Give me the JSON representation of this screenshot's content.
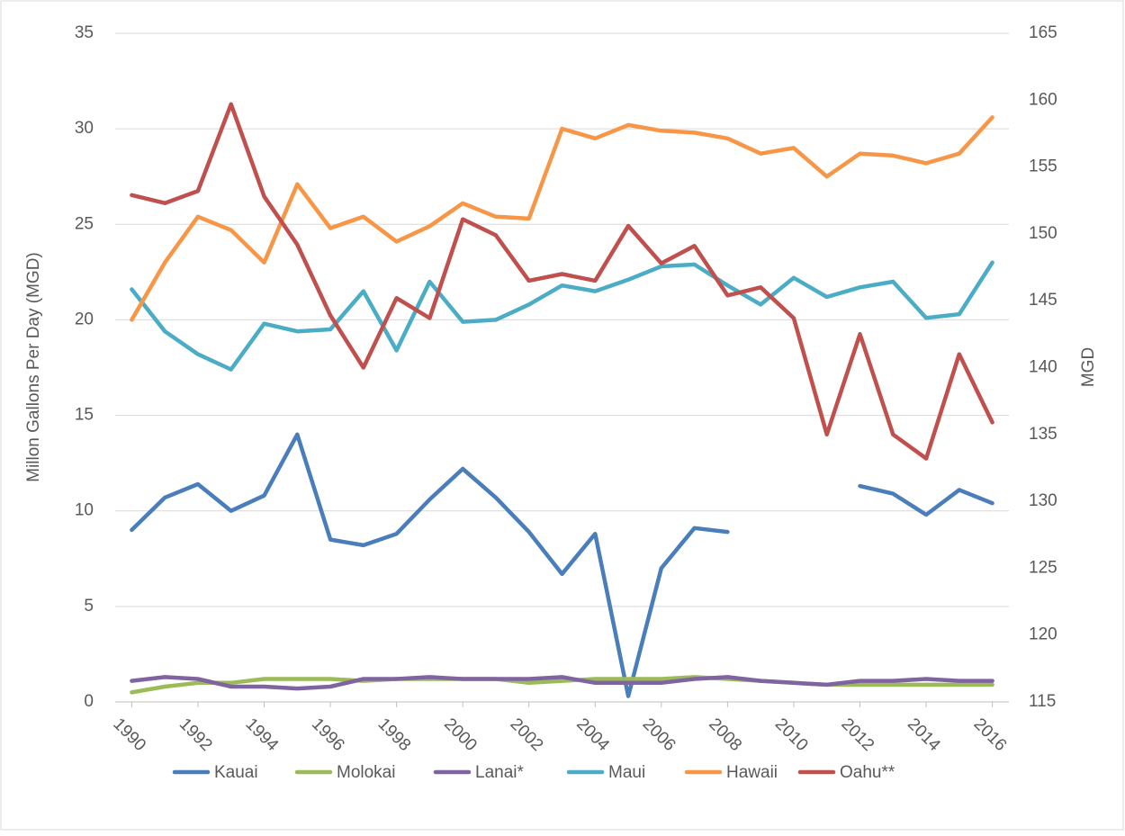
{
  "chart_data": {
    "type": "line",
    "y_label": "Millon Gallons Per Day (MGD)",
    "y2_label": "MGD",
    "x": [
      1990,
      1991,
      1992,
      1993,
      1994,
      1995,
      1996,
      1997,
      1998,
      1999,
      2000,
      2001,
      2002,
      2003,
      2004,
      2005,
      2006,
      2007,
      2008,
      2009,
      2010,
      2011,
      2012,
      2013,
      2014,
      2015,
      2016
    ],
    "xlim": [
      1989.5,
      2016.5
    ],
    "xticks": [
      1990,
      1992,
      1994,
      1996,
      1998,
      2000,
      2002,
      2004,
      2006,
      2008,
      2010,
      2012,
      2014,
      2016
    ],
    "ylim": [
      0,
      35
    ],
    "yticks": [
      0,
      5,
      10,
      15,
      20,
      25,
      30,
      35
    ],
    "y2lim": [
      115,
      165
    ],
    "y2ticks": [
      115,
      120,
      125,
      130,
      135,
      140,
      145,
      150,
      155,
      160,
      165
    ],
    "grid": true,
    "legend": "bottom",
    "series": [
      {
        "name": "Kauai",
        "color": "#4a7ebb",
        "values": [
          9.0,
          10.7,
          11.4,
          10.0,
          10.8,
          14.0,
          8.5,
          8.2,
          8.8,
          10.6,
          12.2,
          10.7,
          8.9,
          6.7,
          8.8,
          0.3,
          7.0,
          9.1,
          8.9,
          null,
          null,
          null,
          11.3,
          10.9,
          9.8,
          11.1,
          10.4
        ]
      },
      {
        "name": "Molokai",
        "color": "#9bbb59",
        "values": [
          0.5,
          0.8,
          1.0,
          1.0,
          1.2,
          1.2,
          1.2,
          1.1,
          1.2,
          1.2,
          1.2,
          1.2,
          1.0,
          1.1,
          1.2,
          1.2,
          1.2,
          1.3,
          1.2,
          1.1,
          1.0,
          0.9,
          0.9,
          0.9,
          0.9,
          0.9,
          0.9
        ]
      },
      {
        "name": "Lanai*",
        "color": "#8064a2",
        "values": [
          1.1,
          1.3,
          1.2,
          0.8,
          0.8,
          0.7,
          0.8,
          1.2,
          1.2,
          1.3,
          1.2,
          1.2,
          1.2,
          1.3,
          1.0,
          1.0,
          1.0,
          1.2,
          1.3,
          1.1,
          1.0,
          0.9,
          1.1,
          1.1,
          1.2,
          1.1,
          1.1
        ]
      },
      {
        "name": "Maui",
        "color": "#4bacc6",
        "values": [
          21.6,
          19.4,
          18.2,
          17.4,
          19.8,
          19.4,
          19.5,
          21.5,
          18.4,
          22.0,
          19.9,
          20.0,
          20.8,
          21.8,
          21.5,
          22.1,
          22.8,
          22.9,
          21.8,
          20.8,
          22.2,
          21.2,
          21.7,
          22.0,
          20.1,
          20.3,
          23.0
        ]
      },
      {
        "name": "Hawaii",
        "color": "#f79646",
        "values": [
          20.0,
          23.0,
          25.4,
          24.7,
          23.0,
          27.1,
          24.8,
          25.4,
          24.1,
          24.9,
          26.1,
          25.4,
          25.3,
          30.0,
          29.5,
          30.2,
          29.9,
          29.8,
          29.5,
          28.7,
          29.0,
          27.5,
          28.7,
          28.6,
          28.2,
          28.7,
          30.6
        ]
      },
      {
        "name": "Oahu**",
        "color": "#c0504d",
        "axis": "y2",
        "values": [
          152.9,
          152.3,
          153.2,
          159.7,
          152.8,
          149.2,
          143.9,
          140.0,
          145.2,
          143.7,
          151.1,
          149.9,
          146.5,
          147.0,
          146.5,
          150.6,
          147.8,
          149.1,
          145.4,
          146.0,
          143.7,
          135.0,
          142.5,
          135.0,
          133.2,
          141.0,
          135.9
        ]
      }
    ]
  }
}
